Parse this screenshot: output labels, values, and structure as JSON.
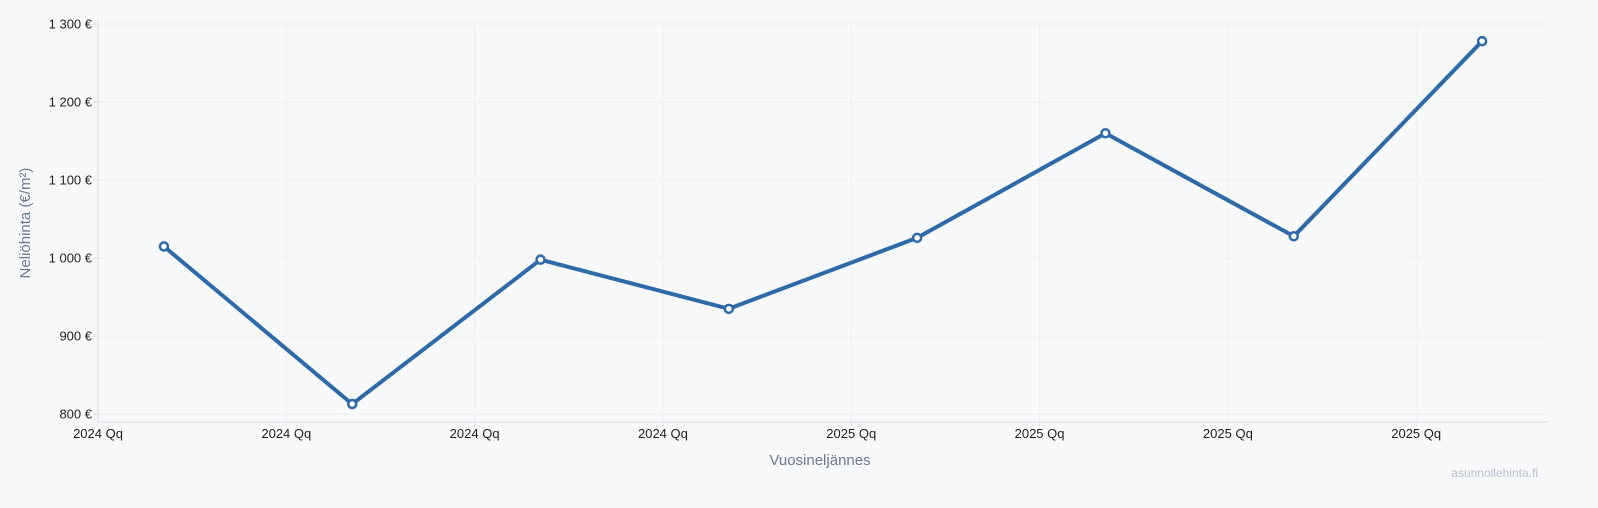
{
  "chart_data": {
    "type": "line",
    "title": "",
    "xlabel": "Vuosineljännes",
    "ylabel": "Neliöhinta (€/m²)",
    "x_tick_labels": [
      "2024 Qq",
      "2024 Qq",
      "2024 Qq",
      "2024 Qq",
      "2025 Qq",
      "2025 Qq",
      "2025 Qq",
      "2025 Qq"
    ],
    "y_tick_labels": [
      "1 300 €",
      "1 200 €",
      "1 100 €",
      "1 000 €",
      "900 €",
      "800 €"
    ],
    "y_ticks": [
      1300,
      1200,
      1100,
      1000,
      900,
      800
    ],
    "ylim": [
      790,
      1300
    ],
    "x": [
      0.35,
      1.35,
      2.35,
      3.35,
      4.35,
      5.35,
      6.35,
      7.35
    ],
    "xlim": [
      0,
      7.7
    ],
    "series": [
      {
        "values": [
          1015,
          813,
          998,
          935,
          1026,
          1160,
          1028,
          1278
        ],
        "color": "#2e69a8"
      }
    ],
    "grid": true,
    "legend": "none"
  },
  "watermark": "asunnollehinta.fi",
  "colors": {
    "background": "#f7f9fb",
    "line": "#2e69a8",
    "grid": "#eef1f4",
    "axis": "#d8dde3"
  }
}
